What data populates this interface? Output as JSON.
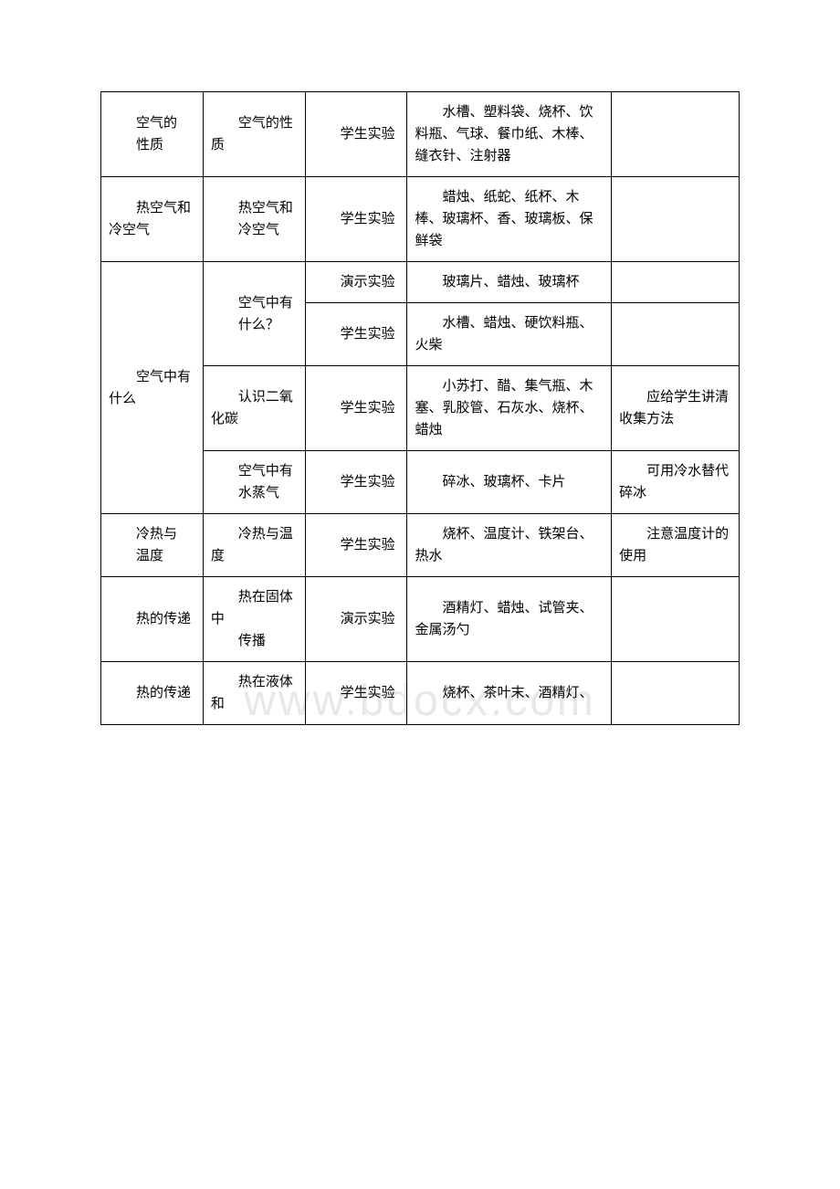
{
  "watermark": "www.bdocx.com",
  "table": {
    "columns": {
      "col1_width": "16%",
      "col2_width": "16%",
      "col3_width": "16%",
      "col4_width": "32%",
      "col5_width": "20%"
    },
    "border_color": "#000000",
    "background_color": "#ffffff",
    "font_size": 15,
    "text_color": "#000000",
    "rows": [
      {
        "topic": "空气的",
        "topic_line2": "性质",
        "experiment": "空气的性质",
        "type": "学生实验",
        "materials": "水槽、塑料袋、烧杯、饮料瓶、气球、餐巾纸、木棒、缝衣针、注射器",
        "note": ""
      },
      {
        "topic": "热空气和冷空气",
        "experiment_line1": "热空气和",
        "experiment_line2": "冷空气",
        "type": "学生实验",
        "materials": "蜡烛、纸蛇、纸杯、木棒、玻璃杯、香、玻璃板、保鲜袋",
        "note": ""
      },
      {
        "topic_rowspan": "空气中有什么",
        "sub": [
          {
            "experiment_line1": "空气中有",
            "experiment_line2": "什么？",
            "type": "演示实验",
            "materials": "玻璃片、蜡烛、玻璃杯",
            "note": ""
          },
          {
            "experiment": "",
            "type": "学生实验",
            "materials": "水槽、蜡烛、硬饮料瓶、火柴",
            "note": ""
          },
          {
            "experiment": "认识二氧化碳",
            "type": "学生实验",
            "materials": "小苏打、醋、集气瓶、木塞、乳胶管、石灰水、烧杯、蜡烛",
            "note": "应给学生讲清收集方法"
          },
          {
            "experiment_line1": "空气中有",
            "experiment_line2": "水蒸气",
            "type": "学生实验",
            "materials": "碎冰、玻璃杯、卡片",
            "note": "可用冷水替代碎冰"
          }
        ]
      },
      {
        "topic": "冷热与",
        "topic_line2": "温度",
        "experiment": "冷热与温度",
        "type": "学生实验",
        "materials": "烧杯、温度计、铁架台、热水",
        "note": "注意温度计的使用"
      },
      {
        "topic": "热的传递",
        "experiment_line1": "热在固体中",
        "experiment_line2": "传播",
        "type": "演示实验",
        "materials": "酒精灯、蜡烛、试管夹、金属汤勺",
        "note": ""
      },
      {
        "topic": "热的传递",
        "experiment": "热在液体和",
        "type": "学生实验",
        "materials": "烧杯、茶叶末、酒精灯、",
        "note": ""
      }
    ]
  }
}
